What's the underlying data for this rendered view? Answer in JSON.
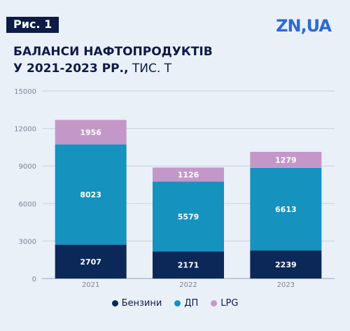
{
  "header": {
    "figure_label": "Рис. 1",
    "logo_text": "ZN,UA",
    "title_line1": "БАЛАНСИ НАФТОПРОДУКТІВ",
    "title_line2": "У 2021-2023 РР.,",
    "title_unit": " ТИС. Т"
  },
  "colors": {
    "background": "#eaf0f8",
    "navy": "#0d1b45",
    "accent_blue": "#2c6ad8"
  },
  "chart_data": {
    "type": "bar",
    "stacked": true,
    "categories": [
      "2021",
      "2022",
      "2023"
    ],
    "series": [
      {
        "name": "Бензини",
        "values": [
          2707,
          2171,
          2239
        ],
        "color": "#0c2858",
        "label_color": "#ffffff"
      },
      {
        "name": "ДП",
        "values": [
          8023,
          5579,
          6613
        ],
        "color": "#1592be",
        "label_color": "#ffffff"
      },
      {
        "name": "LPG",
        "values": [
          1956,
          1126,
          1279
        ],
        "color": "#c497c9",
        "label_color": "#ffffff"
      }
    ],
    "ylim": [
      0,
      15000
    ],
    "yticks": [
      0,
      3000,
      6000,
      9000,
      12000,
      15000
    ],
    "title": "",
    "xlabel": "",
    "ylabel": "",
    "grid": true,
    "legend_position": "bottom"
  }
}
